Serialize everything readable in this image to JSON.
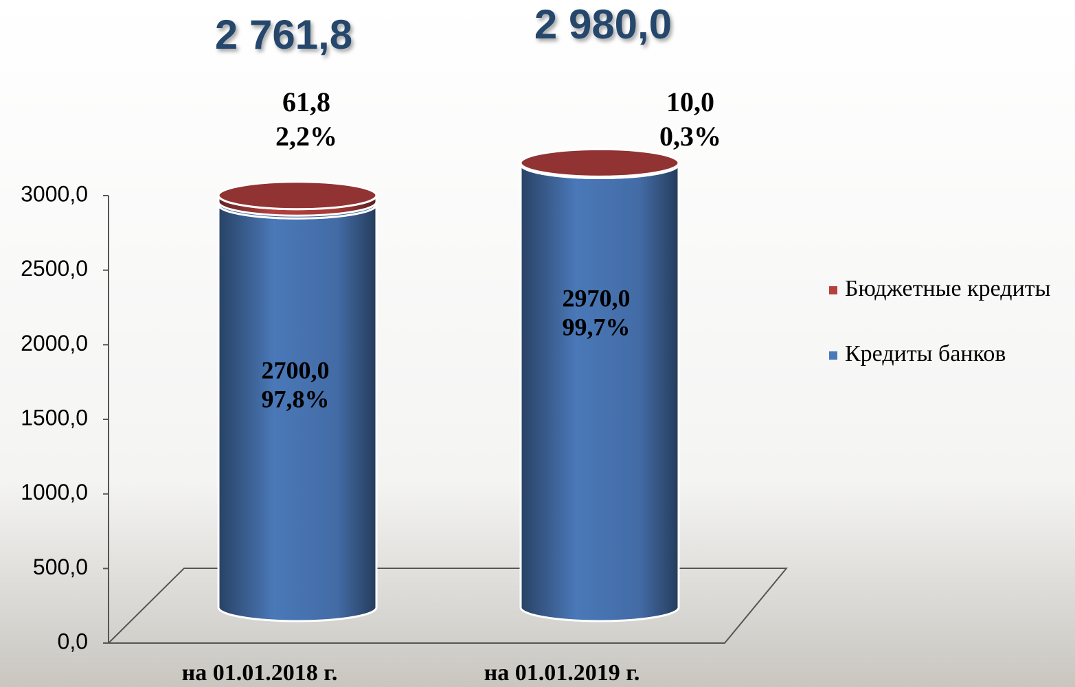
{
  "chart_data": {
    "type": "cylinder-stacked-bar",
    "categories": [
      "на 01.01.2018 г.",
      "на 01.01.2019 г."
    ],
    "series": [
      {
        "name": "Кредиты банков",
        "color": "#4a78b8",
        "values": [
          2700.0,
          2970.0
        ],
        "value_labels": [
          "2700,0",
          "2970,0"
        ],
        "shares": [
          97.8,
          99.7
        ],
        "share_labels": [
          "97,8%",
          "99,7%"
        ]
      },
      {
        "name": "Бюджетные кредиты",
        "color": "#b5403e",
        "values": [
          61.8,
          10.0
        ],
        "value_labels": [
          "61,8",
          "10,0"
        ],
        "shares": [
          2.2,
          0.3
        ],
        "share_labels": [
          "2,2%",
          "0,3%"
        ]
      }
    ],
    "totals": [
      2761.8,
      2980.0
    ],
    "total_labels": [
      "2 761,8",
      "2 980,0"
    ],
    "ylim": [
      0,
      3000
    ],
    "yticks": [
      {
        "value": 0,
        "label": "0,0"
      },
      {
        "value": 500,
        "label": "500,0"
      },
      {
        "value": 1000,
        "label": "1000,0"
      },
      {
        "value": 1500,
        "label": "1500,0"
      },
      {
        "value": 2000,
        "label": "2000,0"
      },
      {
        "value": 2500,
        "label": "2500,0"
      },
      {
        "value": 3000,
        "label": "3000,0"
      }
    ],
    "legend": "right"
  }
}
